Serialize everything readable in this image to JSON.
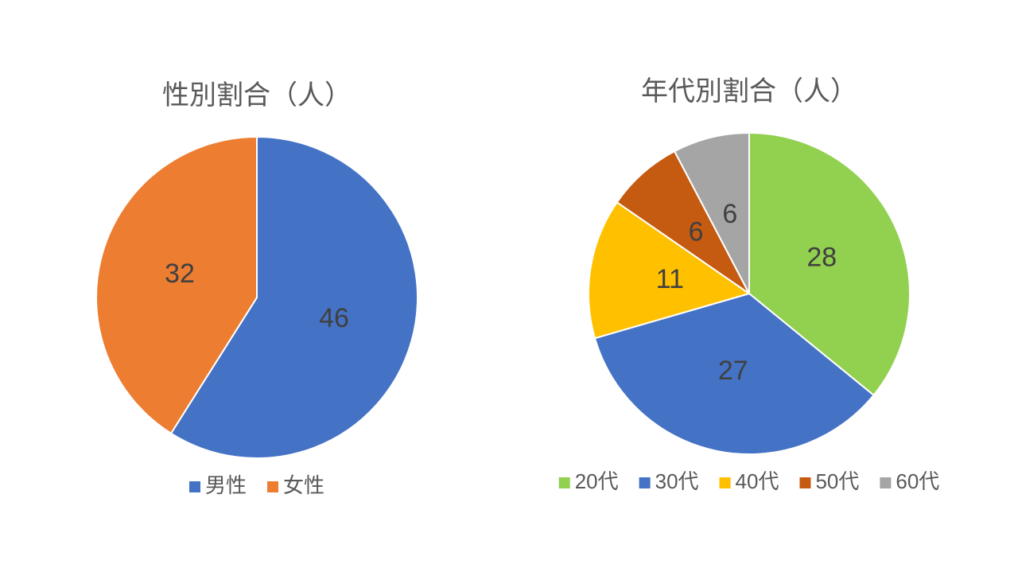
{
  "chart_data": [
    {
      "type": "pie",
      "title": "性別割合（人）",
      "categories": [
        "男性",
        "女性"
      ],
      "values": [
        46,
        32
      ],
      "colors": [
        "#4472c4",
        "#ed7d31"
      ],
      "legend": "bottom"
    },
    {
      "type": "pie",
      "title": "年代別割合（人）",
      "categories": [
        "20代",
        "30代",
        "40代",
        "50代",
        "60代"
      ],
      "values": [
        28,
        27,
        11,
        6,
        6
      ],
      "colors": [
        "#92d050",
        "#4472c4",
        "#ffc000",
        "#c55a11",
        "#a5a5a5"
      ],
      "legend": "bottom"
    }
  ]
}
